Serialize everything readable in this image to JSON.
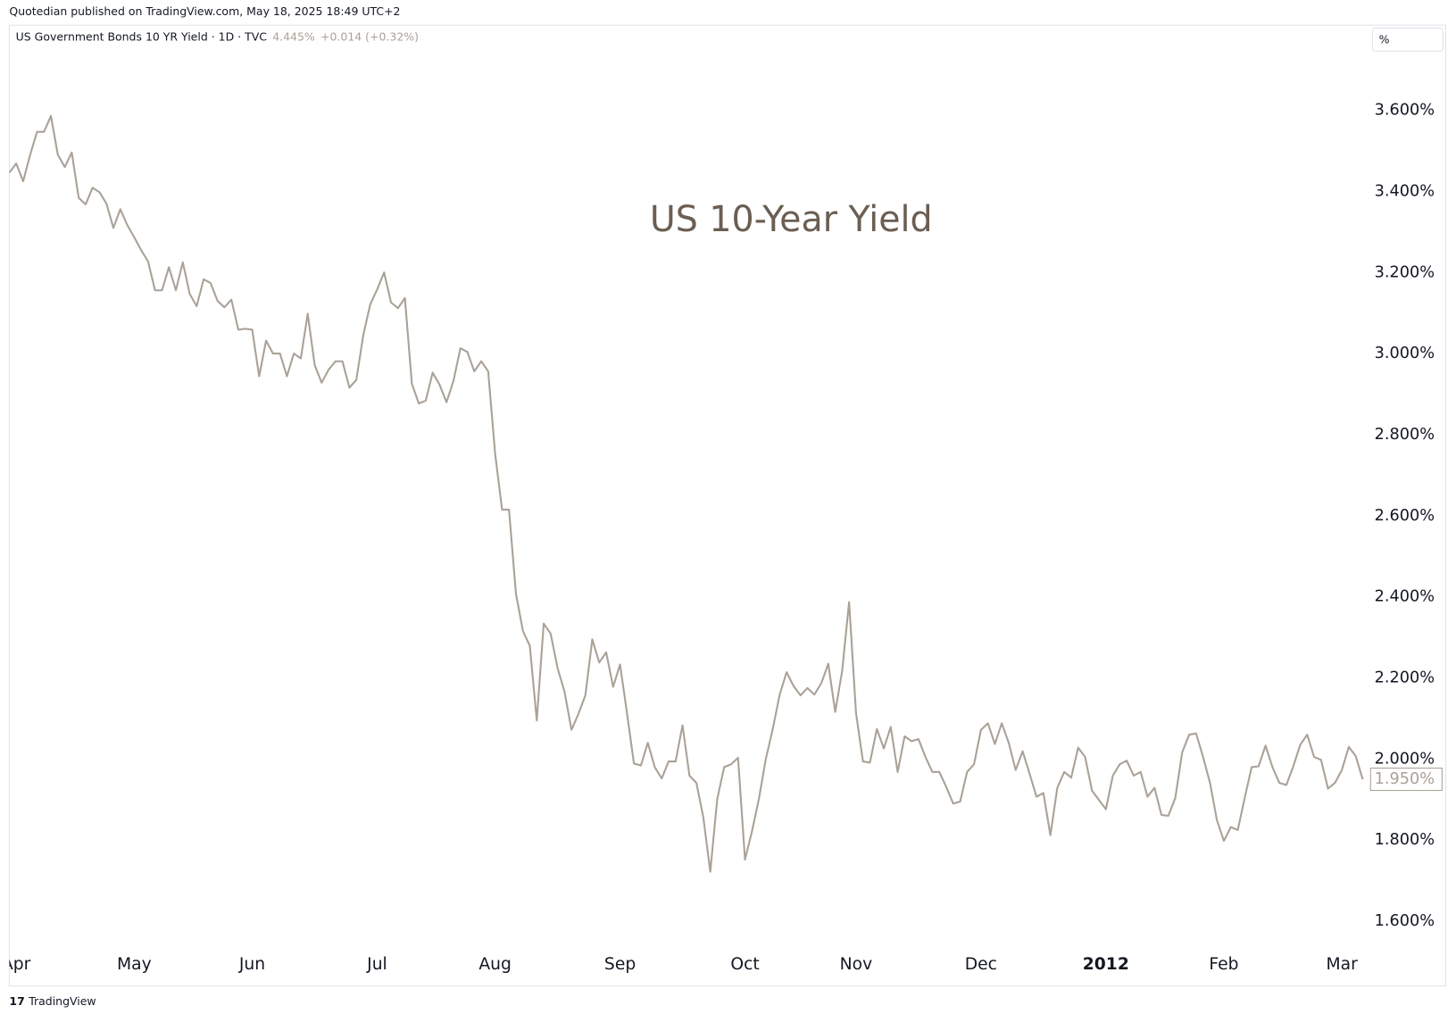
{
  "header": {
    "published": "Quotedian published on TradingView.com, May 18, 2025 18:49 UTC+2",
    "symbol": "US Government Bonds 10 YR Yield · 1D · TVC",
    "price": "4.445%",
    "change": "+0.014 (+0.32%)",
    "unit_button": "%"
  },
  "footer": {
    "brand": "TradingView"
  },
  "chart_data": {
    "type": "line",
    "title": "US 10-Year Yield",
    "series": [
      {
        "name": "US Government Bonds 10 YR Yield",
        "color": "#aaa197",
        "values": [
          3.446,
          3.469,
          3.425,
          3.49,
          3.547,
          3.547,
          3.586,
          3.49,
          3.46,
          3.496,
          3.384,
          3.368,
          3.409,
          3.398,
          3.37,
          3.31,
          3.356,
          3.317,
          3.287,
          3.255,
          3.227,
          3.156,
          3.156,
          3.213,
          3.156,
          3.225,
          3.147,
          3.117,
          3.183,
          3.174,
          3.13,
          3.114,
          3.133,
          3.059,
          3.061,
          3.059,
          2.944,
          3.032,
          3.0,
          3.0,
          2.944,
          3.0,
          2.988,
          3.098,
          2.972,
          2.928,
          2.96,
          2.981,
          2.981,
          2.916,
          2.935,
          3.045,
          3.121,
          3.158,
          3.2,
          3.126,
          3.112,
          3.137,
          2.926,
          2.877,
          2.884,
          2.953,
          2.923,
          2.88,
          2.933,
          3.013,
          3.004,
          2.956,
          2.981,
          2.956,
          2.753,
          2.615,
          2.615,
          2.408,
          2.316,
          2.279,
          2.095,
          2.334,
          2.309,
          2.224,
          2.166,
          2.072,
          2.111,
          2.157,
          2.295,
          2.238,
          2.263,
          2.178,
          2.233,
          2.113,
          1.989,
          1.984,
          2.04,
          1.98,
          1.952,
          1.994,
          1.994,
          2.083,
          1.959,
          1.941,
          1.856,
          1.722,
          1.901,
          1.98,
          1.987,
          2.003,
          1.752,
          1.821,
          1.901,
          2.0,
          2.074,
          2.159,
          2.214,
          2.18,
          2.157,
          2.175,
          2.159,
          2.187,
          2.235,
          2.116,
          2.217,
          2.387,
          2.113,
          1.994,
          1.991,
          2.074,
          2.026,
          2.079,
          1.968,
          2.056,
          2.044,
          2.049,
          2.005,
          1.968,
          1.968,
          1.931,
          1.89,
          1.895,
          1.968,
          1.987,
          2.072,
          2.088,
          2.037,
          2.088,
          2.04,
          1.973,
          2.019,
          1.964,
          1.907,
          1.916,
          1.812,
          1.929,
          1.968,
          1.954,
          2.028,
          2.005,
          1.922,
          1.899,
          1.876,
          1.959,
          1.987,
          1.996,
          1.959,
          1.968,
          1.907,
          1.929,
          1.862,
          1.86,
          1.904,
          2.017,
          2.06,
          2.063,
          2.005,
          1.941,
          1.849,
          1.798,
          1.832,
          1.825,
          1.904,
          1.98,
          1.982,
          2.033,
          1.98,
          1.941,
          1.936,
          1.982,
          2.035,
          2.06,
          2.005,
          1.998,
          1.927,
          1.941,
          1.973,
          2.03,
          2.007,
          1.95
        ],
        "value_labels": {
          "195": "1.950%"
        }
      }
    ],
    "xlim": [
      0,
      196
    ],
    "xticks": [
      {
        "value": 1,
        "label": "Apr"
      },
      {
        "value": 18,
        "label": "May"
      },
      {
        "value": 35,
        "label": "Jun"
      },
      {
        "value": 53,
        "label": "Jul"
      },
      {
        "value": 70,
        "label": "Aug"
      },
      {
        "value": 88,
        "label": "Sep"
      },
      {
        "value": 106,
        "label": "Oct"
      },
      {
        "value": 122,
        "label": "Nov"
      },
      {
        "value": 140,
        "label": "Dec"
      },
      {
        "value": 158,
        "label": "2012"
      },
      {
        "value": 175,
        "label": "Feb"
      },
      {
        "value": 192,
        "label": "Mar"
      }
    ],
    "ylim": [
      1.44,
      3.81
    ],
    "yticks": [
      {
        "value": 1.6,
        "label": "1.600%"
      },
      {
        "value": 1.8,
        "label": "1.800%"
      },
      {
        "value": 2.0,
        "label": "2.000%"
      },
      {
        "value": 2.2,
        "label": "2.200%"
      },
      {
        "value": 2.4,
        "label": "2.400%"
      },
      {
        "value": 2.6,
        "label": "2.600%"
      },
      {
        "value": 2.8,
        "label": "2.800%"
      },
      {
        "value": 3.0,
        "label": "3.000%"
      },
      {
        "value": 3.2,
        "label": "3.200%"
      },
      {
        "value": 3.4,
        "label": "3.400%"
      },
      {
        "value": 3.6,
        "label": "3.600%"
      }
    ],
    "grid": false
  }
}
